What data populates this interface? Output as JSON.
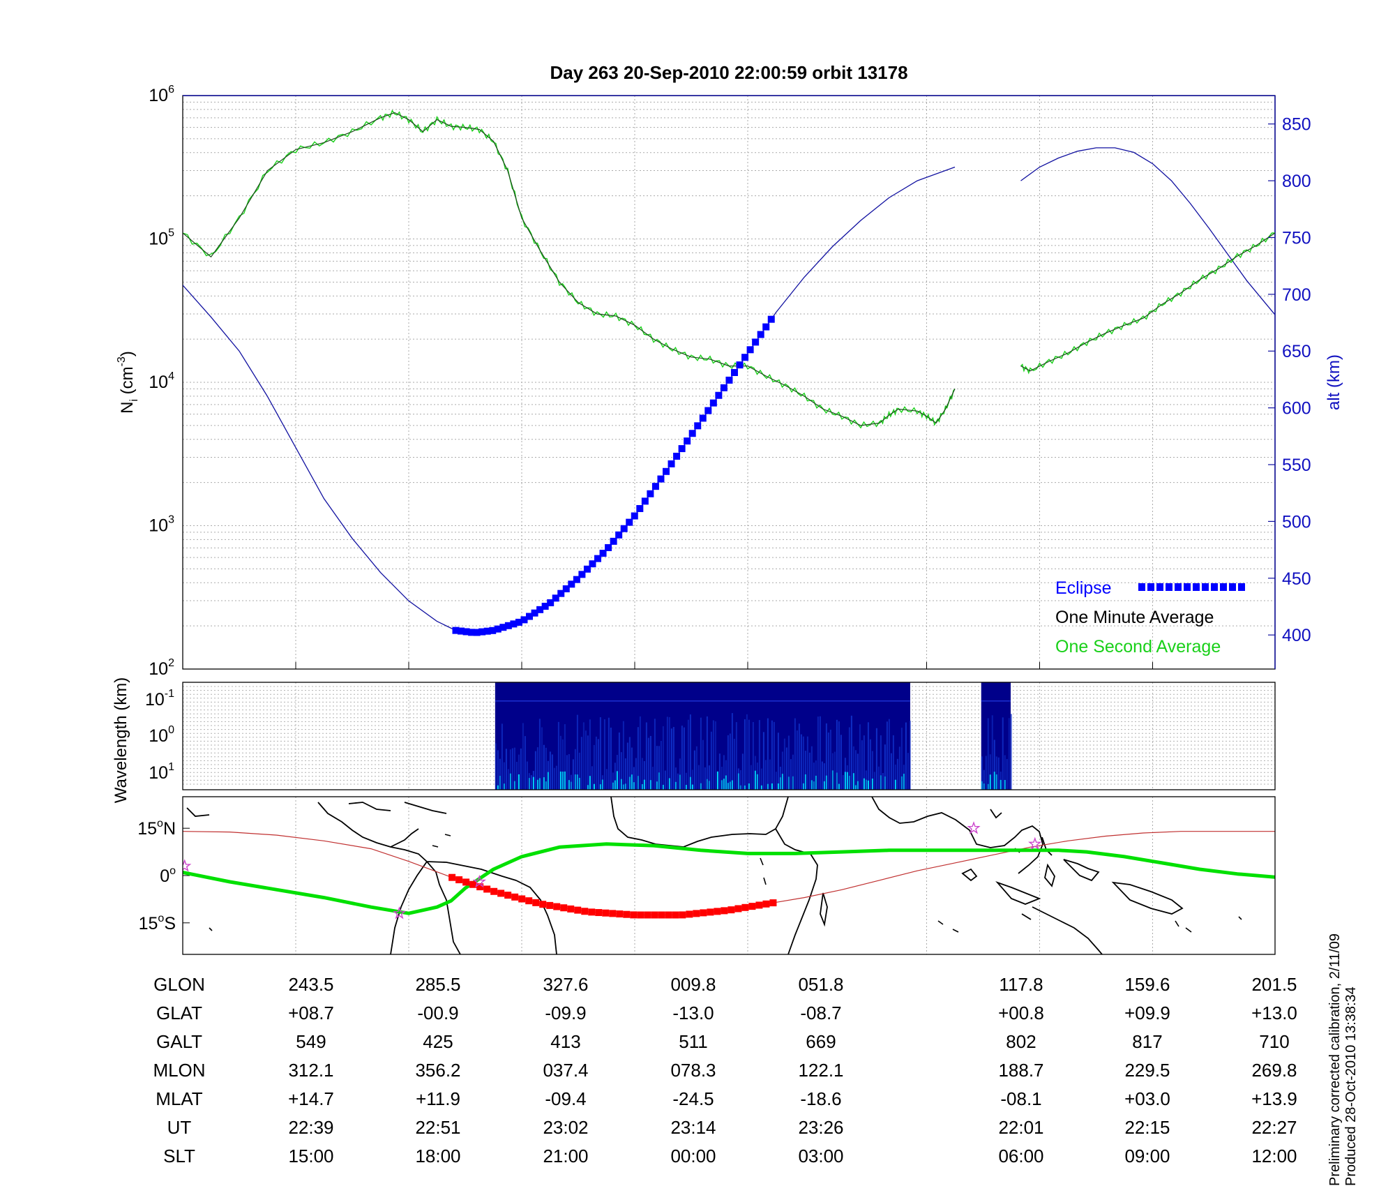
{
  "title": "Day 263  20-Sep-2010 22:00:59   orbit 13178",
  "colors": {
    "altitude": "#1010a0",
    "one_minute": "#000000",
    "one_second": "#19d019",
    "eclipse": "#0000ff",
    "track": "#00e000",
    "track_eclipse": "#ff0000",
    "orbit_line": "#c03030",
    "star": "#cc44cc",
    "spectrogram_dark": "#00008a",
    "spectrogram_mid": "#1030c8",
    "spectrogram_bright": "#00e0ff"
  },
  "chart_data": [
    {
      "type": "line",
      "ylabel_main": "N",
      "ylabel_sub": "i",
      "ylabel_tail": " (cm",
      "ylabel_sup": "-3",
      "ylabel_close": ")",
      "y_scale": "log",
      "ylim": [
        100,
        1000000
      ],
      "y_ticks": [
        {
          "base": "10",
          "exp": "2",
          "value": 100
        },
        {
          "base": "10",
          "exp": "3",
          "value": 1000
        },
        {
          "base": "10",
          "exp": "4",
          "value": 10000
        },
        {
          "base": "10",
          "exp": "5",
          "value": 100000
        },
        {
          "base": "10",
          "exp": "6",
          "value": 1000000
        }
      ],
      "y2label": "alt (km)",
      "y2lim": [
        370,
        875
      ],
      "y2_ticks": [
        "400",
        "450",
        "500",
        "550",
        "600",
        "650",
        "700",
        "750",
        "800",
        "850"
      ],
      "grid": true,
      "legend": {
        "position": "bottom-right",
        "eclipse": "Eclipse",
        "one_minute": "One Minute Average",
        "one_second": "One Second Average"
      },
      "series": [
        {
          "name": "One Minute Average",
          "segment1": [
            [
              0.0,
              110000
            ],
            [
              0.03,
              75000
            ],
            [
              0.06,
              140000
            ],
            [
              0.09,
              300000
            ],
            [
              0.12,
              420000
            ],
            [
              0.15,
              470000
            ],
            [
              0.18,
              560000
            ],
            [
              0.21,
              700000
            ],
            [
              0.225,
              760000
            ],
            [
              0.24,
              680000
            ],
            [
              0.255,
              560000
            ],
            [
              0.27,
              680000
            ],
            [
              0.285,
              610000
            ],
            [
              0.3,
              600000
            ],
            [
              0.315,
              580000
            ],
            [
              0.33,
              480000
            ],
            [
              0.345,
              300000
            ],
            [
              0.36,
              140000
            ],
            [
              0.38,
              82000
            ],
            [
              0.4,
              50000
            ],
            [
              0.42,
              36000
            ],
            [
              0.44,
              30000
            ],
            [
              0.46,
              29000
            ],
            [
              0.48,
              25000
            ],
            [
              0.5,
              20000
            ],
            [
              0.52,
              17000
            ],
            [
              0.54,
              15000
            ],
            [
              0.56,
              14500
            ],
            [
              0.58,
              13000
            ],
            [
              0.6,
              13000
            ],
            [
              0.62,
              11000
            ],
            [
              0.64,
              9500
            ],
            [
              0.66,
              8000
            ],
            [
              0.68,
              6500
            ],
            [
              0.7,
              5800
            ],
            [
              0.72,
              5000
            ],
            [
              0.74,
              5200
            ],
            [
              0.75,
              5900
            ],
            [
              0.76,
              6500
            ],
            [
              0.78,
              6300
            ],
            [
              0.79,
              5800
            ],
            [
              0.8,
              5200
            ],
            [
              0.81,
              6500
            ],
            [
              0.82,
              9000
            ]
          ],
          "segment2": [
            [
              0.89,
              13000
            ],
            [
              0.9,
              12000
            ],
            [
              0.92,
              14000
            ],
            [
              0.94,
              16000
            ],
            [
              0.96,
              19000
            ],
            [
              0.98,
              22000
            ],
            [
              1.0,
              25000
            ],
            [
              1.02,
              28000
            ],
            [
              1.04,
              35000
            ],
            [
              1.06,
              42000
            ],
            [
              1.08,
              52000
            ],
            [
              1.1,
              62000
            ],
            [
              1.12,
              76000
            ],
            [
              1.14,
              90000
            ],
            [
              1.16,
              110000
            ]
          ]
        },
        {
          "name": "alt (km)",
          "segment1": [
            [
              0.0,
              708
            ],
            [
              0.03,
              680
            ],
            [
              0.06,
              650
            ],
            [
              0.09,
              610
            ],
            [
              0.12,
              565
            ],
            [
              0.15,
              520
            ],
            [
              0.18,
              485
            ],
            [
              0.21,
              455
            ],
            [
              0.24,
              430
            ],
            [
              0.27,
              412
            ],
            [
              0.29,
              404
            ],
            [
              0.31,
              402
            ],
            [
              0.33,
              404
            ],
            [
              0.36,
              412
            ],
            [
              0.39,
              428
            ],
            [
              0.42,
              450
            ],
            [
              0.45,
              475
            ],
            [
              0.48,
              505
            ],
            [
              0.51,
              540
            ],
            [
              0.54,
              576
            ],
            [
              0.57,
              612
            ],
            [
              0.6,
              648
            ],
            [
              0.63,
              684
            ],
            [
              0.66,
              715
            ],
            [
              0.69,
              742
            ],
            [
              0.72,
              765
            ],
            [
              0.75,
              785
            ],
            [
              0.78,
              800
            ],
            [
              0.82,
              812
            ]
          ],
          "segment2": [
            [
              0.89,
              800
            ],
            [
              0.91,
              812
            ],
            [
              0.93,
              820
            ],
            [
              0.95,
              826
            ],
            [
              0.97,
              829
            ],
            [
              0.99,
              829
            ],
            [
              1.01,
              825
            ],
            [
              1.03,
              815
            ],
            [
              1.05,
              800
            ],
            [
              1.07,
              780
            ],
            [
              1.09,
              758
            ],
            [
              1.11,
              735
            ],
            [
              1.13,
              712
            ],
            [
              1.15,
              692
            ],
            [
              1.16,
              682
            ]
          ]
        },
        {
          "name": "Eclipse",
          "range": [
            0.29,
            0.625
          ]
        }
      ]
    },
    {
      "type": "heatmap",
      "ylabel": "Wavelength (km)",
      "y_ticks": [
        {
          "base": "10",
          "exp": "-1"
        },
        {
          "base": "10",
          "exp": "0"
        },
        {
          "base": "10",
          "exp": "1"
        }
      ],
      "blocks": [
        [
          0.286,
          0.666
        ],
        [
          0.731,
          0.758
        ]
      ]
    },
    {
      "type": "line",
      "y_ticks": [
        {
          "value": "15",
          "sym": "o",
          "dir": "N"
        },
        {
          "value": "0",
          "sym": "o",
          "dir": ""
        },
        {
          "value": "15",
          "sym": "o",
          "dir": "S"
        }
      ],
      "ylim": [
        -25,
        25
      ],
      "series": [
        {
          "name": "ground track",
          "points": [
            [
              0.0,
              1
            ],
            [
              0.05,
              -2
            ],
            [
              0.1,
              -4.5
            ],
            [
              0.15,
              -7
            ],
            [
              0.2,
              -10
            ],
            [
              0.24,
              -12
            ],
            [
              0.27,
              -10
            ],
            [
              0.285,
              -8
            ],
            [
              0.3,
              -4
            ],
            [
              0.33,
              2
            ],
            [
              0.36,
              6
            ],
            [
              0.4,
              9
            ],
            [
              0.45,
              10
            ],
            [
              0.5,
              9.5
            ],
            [
              0.55,
              8
            ],
            [
              0.6,
              7
            ],
            [
              0.65,
              7
            ],
            [
              0.7,
              7.5
            ],
            [
              0.75,
              8
            ],
            [
              0.8,
              8
            ],
            [
              0.85,
              8
            ],
            [
              0.88,
              8
            ],
            [
              0.9,
              8
            ],
            [
              0.93,
              8
            ],
            [
              0.96,
              7.5
            ],
            [
              1.0,
              6
            ],
            [
              1.04,
              4
            ],
            [
              1.08,
              2
            ],
            [
              1.12,
              0.5
            ],
            [
              1.16,
              -0.5
            ]
          ]
        },
        {
          "name": "orbit line",
          "points": [
            [
              0.0,
              14
            ],
            [
              0.05,
              13.8
            ],
            [
              0.1,
              12.8
            ],
            [
              0.15,
              11
            ],
            [
              0.2,
              8.5
            ],
            [
              0.24,
              4.5
            ],
            [
              0.285,
              -0.5
            ],
            [
              0.33,
              -5
            ],
            [
              0.38,
              -9
            ],
            [
              0.43,
              -11.5
            ],
            [
              0.48,
              -12.5
            ],
            [
              0.53,
              -12.5
            ],
            [
              0.58,
              -11
            ],
            [
              0.62,
              -9
            ],
            [
              0.66,
              -7
            ],
            [
              0.7,
              -4.5
            ],
            [
              0.74,
              -1.5
            ],
            [
              0.78,
              1.5
            ],
            [
              0.82,
              4
            ],
            [
              0.86,
              6.5
            ],
            [
              0.9,
              9
            ],
            [
              0.94,
              11
            ],
            [
              0.98,
              12.5
            ],
            [
              1.02,
              13.5
            ],
            [
              1.06,
              14
            ],
            [
              1.1,
              14
            ],
            [
              1.16,
              14
            ]
          ]
        },
        {
          "name": "eclipse track",
          "range": [
            0.286,
            0.627
          ]
        }
      ],
      "stars": [
        [
          0.002,
          3
        ],
        [
          0.23,
          -12
        ],
        [
          0.315,
          -2
        ],
        [
          0.84,
          15
        ],
        [
          0.905,
          10
        ]
      ]
    }
  ],
  "table": {
    "labels": [
      "GLON",
      "GLAT",
      "GALT",
      "MLON",
      "MLAT",
      "UT",
      "SLT"
    ],
    "columns": [
      [
        "243.5",
        "+08.7",
        "549",
        "312.1",
        "+14.7",
        "22:39",
        "15:00"
      ],
      [
        "285.5",
        "-00.9",
        "425",
        "356.2",
        "+11.9",
        "22:51",
        "18:00"
      ],
      [
        "327.6",
        "-09.9",
        "413",
        "037.4",
        "-09.4",
        "23:02",
        "21:00"
      ],
      [
        "009.8",
        "-13.0",
        "511",
        "078.3",
        "-24.5",
        "23:14",
        "00:00"
      ],
      [
        "051.8",
        "-08.7",
        "669",
        "122.1",
        "-18.6",
        "23:26",
        "03:00"
      ],
      [
        "117.8",
        "+00.8",
        "802",
        "188.7",
        "-08.1",
        "22:01",
        "06:00"
      ],
      [
        "159.6",
        "+09.9",
        "817",
        "229.5",
        "+03.0",
        "22:15",
        "09:00"
      ],
      [
        "201.5",
        "+13.0",
        "710",
        "269.8",
        "+13.9",
        "22:27",
        "12:00"
      ]
    ]
  },
  "footer": {
    "line1": "Preliminary corrected calibration, 2/11/09",
    "line2": "Produced 28-Oct-2010 13:38:34"
  }
}
